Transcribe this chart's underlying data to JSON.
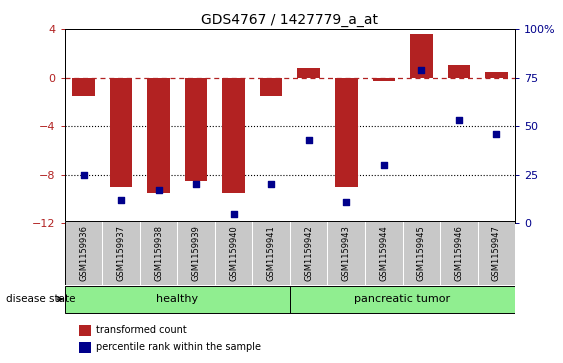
{
  "title": "GDS4767 / 1427779_a_at",
  "samples": [
    "GSM1159936",
    "GSM1159937",
    "GSM1159938",
    "GSM1159939",
    "GSM1159940",
    "GSM1159941",
    "GSM1159942",
    "GSM1159943",
    "GSM1159944",
    "GSM1159945",
    "GSM1159946",
    "GSM1159947"
  ],
  "transformed_count": [
    -1.5,
    -9.0,
    -9.5,
    -8.5,
    -9.5,
    -1.5,
    0.8,
    -9.0,
    -0.3,
    3.6,
    1.0,
    0.5
  ],
  "percentile_rank": [
    25,
    12,
    17,
    20,
    5,
    20,
    43,
    11,
    30,
    79,
    53,
    46
  ],
  "healthy_range": [
    0,
    5
  ],
  "tumor_range": [
    6,
    11
  ],
  "group_labels": [
    "healthy",
    "pancreatic tumor"
  ],
  "bar_color": "#B22222",
  "dot_color": "#00008B",
  "left_ylim": [
    -12,
    4
  ],
  "left_yticks": [
    4,
    0,
    -4,
    -8,
    -12
  ],
  "right_ylim": [
    0,
    100
  ],
  "right_yticks": [
    0,
    25,
    50,
    75,
    100
  ],
  "dotted_lines": [
    -4,
    -8
  ],
  "background_color": "#ffffff",
  "plot_bg_color": "#ffffff",
  "tick_label_area_color": "#c8c8c8",
  "group_area_color": "#90EE90",
  "disease_state_label": "disease state",
  "legend_items": [
    "transformed count",
    "percentile rank within the sample"
  ],
  "title_fontsize": 10,
  "axis_fontsize": 8,
  "sample_fontsize": 6
}
